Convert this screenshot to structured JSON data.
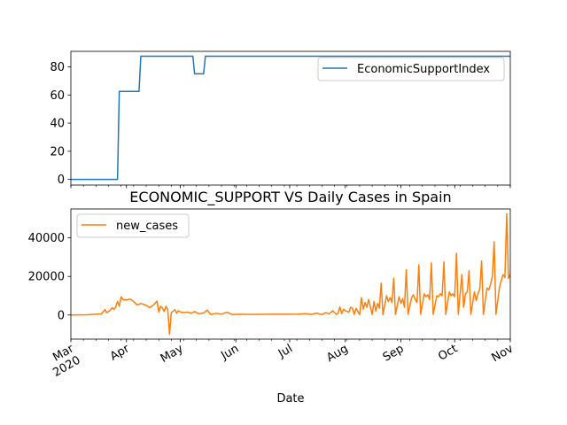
{
  "chart_data": [
    {
      "type": "line",
      "title": "",
      "xlabel": "",
      "ylabel": "",
      "color": "#1f77b4",
      "legend_position": "top-right",
      "grid": false,
      "xlim": [
        "2020-03-01",
        "2020-11-01"
      ],
      "ylim": [
        -4,
        91
      ],
      "yticks": [
        0,
        20,
        40,
        60,
        80
      ],
      "ytick_labels": [
        "0",
        "20",
        "40",
        "60",
        "80"
      ],
      "series": [
        {
          "name": "EconomicSupportIndex",
          "points": [
            [
              "2020-03-01",
              0
            ],
            [
              "2020-03-27",
              0
            ],
            [
              "2020-03-28",
              62.5
            ],
            [
              "2020-04-08",
              62.5
            ],
            [
              "2020-04-09",
              87.5
            ],
            [
              "2020-05-08",
              87.5
            ],
            [
              "2020-05-09",
              75
            ],
            [
              "2020-05-14",
              75
            ],
            [
              "2020-05-15",
              87.5
            ],
            [
              "2020-11-01",
              87.5
            ]
          ]
        }
      ]
    },
    {
      "type": "line",
      "title": "ECONOMIC_SUPPORT VS Daily Cases in Spain",
      "xlabel": "Date",
      "ylabel": "",
      "color": "#ff7f0e",
      "legend_position": "top-left",
      "grid": false,
      "xlim": [
        "2020-03-01",
        "2020-11-01"
      ],
      "ylim": [
        -12500,
        55000
      ],
      "yticks": [
        0,
        20000,
        40000
      ],
      "ytick_labels": [
        "0",
        "20000",
        "40000"
      ],
      "xtick_dates": [
        "2020-03-01",
        "2020-04-01",
        "2020-05-01",
        "2020-06-01",
        "2020-07-01",
        "2020-08-01",
        "2020-09-01",
        "2020-10-01",
        "2020-11-01"
      ],
      "xtick_labels": [
        "Mar\n2020",
        "Apr",
        "May",
        "Jun",
        "Jul",
        "Aug",
        "Sep",
        "Oct",
        "Nov"
      ],
      "series": [
        {
          "name": "new_cases",
          "points": [
            [
              "2020-03-01",
              0
            ],
            [
              "2020-03-10",
              100
            ],
            [
              "2020-03-18",
              600
            ],
            [
              "2020-03-20",
              2800
            ],
            [
              "2020-03-21",
              1200
            ],
            [
              "2020-03-23",
              2500
            ],
            [
              "2020-03-24",
              3800
            ],
            [
              "2020-03-25",
              2900
            ],
            [
              "2020-03-26",
              4200
            ],
            [
              "2020-03-27",
              7000
            ],
            [
              "2020-03-28",
              4500
            ],
            [
              "2020-03-29",
              9500
            ],
            [
              "2020-03-30",
              8000
            ],
            [
              "2020-04-01",
              7800
            ],
            [
              "2020-04-03",
              8300
            ],
            [
              "2020-04-05",
              7000
            ],
            [
              "2020-04-07",
              5200
            ],
            [
              "2020-04-09",
              6000
            ],
            [
              "2020-04-12",
              5000
            ],
            [
              "2020-04-14",
              3800
            ],
            [
              "2020-04-16",
              5200
            ],
            [
              "2020-04-18",
              7200
            ],
            [
              "2020-04-19",
              1500
            ],
            [
              "2020-04-20",
              4500
            ],
            [
              "2020-04-21",
              3800
            ],
            [
              "2020-04-22",
              1800
            ],
            [
              "2020-04-23",
              4500
            ],
            [
              "2020-04-24",
              3000
            ],
            [
              "2020-04-25",
              -10000
            ],
            [
              "2020-04-26",
              1200
            ],
            [
              "2020-04-28",
              2800
            ],
            [
              "2020-04-29",
              900
            ],
            [
              "2020-04-30",
              2200
            ],
            [
              "2020-05-01",
              1600
            ],
            [
              "2020-05-03",
              1200
            ],
            [
              "2020-05-05",
              1500
            ],
            [
              "2020-05-07",
              900
            ],
            [
              "2020-05-09",
              1800
            ],
            [
              "2020-05-11",
              700
            ],
            [
              "2020-05-14",
              1000
            ],
            [
              "2020-05-16",
              2500
            ],
            [
              "2020-05-18",
              300
            ],
            [
              "2020-05-21",
              900
            ],
            [
              "2020-05-24",
              400
            ],
            [
              "2020-05-27",
              1500
            ],
            [
              "2020-05-30",
              200
            ],
            [
              "2020-06-02",
              400
            ],
            [
              "2020-06-10",
              300
            ],
            [
              "2020-06-20",
              400
            ],
            [
              "2020-06-30",
              400
            ],
            [
              "2020-07-06",
              500
            ],
            [
              "2020-07-10",
              700
            ],
            [
              "2020-07-13",
              300
            ],
            [
              "2020-07-16",
              1000
            ],
            [
              "2020-07-19",
              200
            ],
            [
              "2020-07-21",
              1200
            ],
            [
              "2020-07-23",
              600
            ],
            [
              "2020-07-25",
              2200
            ],
            [
              "2020-07-27",
              300
            ],
            [
              "2020-07-28",
              1000
            ],
            [
              "2020-07-29",
              4200
            ],
            [
              "2020-07-30",
              700
            ],
            [
              "2020-07-31",
              3000
            ],
            [
              "2020-08-01",
              2200
            ],
            [
              "2020-08-03",
              1500
            ],
            [
              "2020-08-04",
              4000
            ],
            [
              "2020-08-05",
              3500
            ],
            [
              "2020-08-06",
              300
            ],
            [
              "2020-08-07",
              3500
            ],
            [
              "2020-08-09",
              200
            ],
            [
              "2020-08-10",
              9000
            ],
            [
              "2020-08-11",
              3000
            ],
            [
              "2020-08-12",
              6500
            ],
            [
              "2020-08-13",
              4000
            ],
            [
              "2020-08-14",
              8000
            ],
            [
              "2020-08-16",
              300
            ],
            [
              "2020-08-17",
              7000
            ],
            [
              "2020-08-18",
              2000
            ],
            [
              "2020-08-19",
              6000
            ],
            [
              "2020-08-20",
              3500
            ],
            [
              "2020-08-21",
              16500
            ],
            [
              "2020-08-22",
              200
            ],
            [
              "2020-08-24",
              10000
            ],
            [
              "2020-08-25",
              7000
            ],
            [
              "2020-08-26",
              9000
            ],
            [
              "2020-08-27",
              6500
            ],
            [
              "2020-08-28",
              19000
            ],
            [
              "2020-08-29",
              300
            ],
            [
              "2020-08-31",
              9500
            ],
            [
              "2020-09-01",
              6000
            ],
            [
              "2020-09-02",
              8500
            ],
            [
              "2020-09-03",
              4000
            ],
            [
              "2020-09-04",
              23500
            ],
            [
              "2020-09-05",
              300
            ],
            [
              "2020-09-07",
              9000
            ],
            [
              "2020-09-08",
              10500
            ],
            [
              "2020-09-09",
              8000
            ],
            [
              "2020-09-10",
              6500
            ],
            [
              "2020-09-11",
              26000
            ],
            [
              "2020-09-12",
              300
            ],
            [
              "2020-09-14",
              11000
            ],
            [
              "2020-09-15",
              9500
            ],
            [
              "2020-09-16",
              10500
            ],
            [
              "2020-09-17",
              8000
            ],
            [
              "2020-09-18",
              27000
            ],
            [
              "2020-09-19",
              300
            ],
            [
              "2020-09-21",
              10000
            ],
            [
              "2020-09-22",
              9500
            ],
            [
              "2020-09-23",
              11000
            ],
            [
              "2020-09-24",
              10000
            ],
            [
              "2020-09-25",
              27500
            ],
            [
              "2020-09-26",
              300
            ],
            [
              "2020-09-28",
              12000
            ],
            [
              "2020-09-29",
              10000
            ],
            [
              "2020-09-30",
              11000
            ],
            [
              "2020-10-01",
              9500
            ],
            [
              "2020-10-02",
              32000
            ],
            [
              "2020-10-03",
              300
            ],
            [
              "2020-10-05",
              21000
            ],
            [
              "2020-10-06",
              4000
            ],
            [
              "2020-10-07",
              11000
            ],
            [
              "2020-10-08",
              12000
            ],
            [
              "2020-10-09",
              23000
            ],
            [
              "2020-10-10",
              300
            ],
            [
              "2020-10-12",
              12000
            ],
            [
              "2020-10-13",
              7500
            ],
            [
              "2020-10-14",
              11000
            ],
            [
              "2020-10-15",
              13500
            ],
            [
              "2020-10-16",
              28000
            ],
            [
              "2020-10-17",
              300
            ],
            [
              "2020-10-19",
              14000
            ],
            [
              "2020-10-20",
              13000
            ],
            [
              "2020-10-21",
              16000
            ],
            [
              "2020-10-22",
              20000
            ],
            [
              "2020-10-23",
              38000
            ],
            [
              "2020-10-24",
              300
            ],
            [
              "2020-10-26",
              14500
            ],
            [
              "2020-10-27",
              18000
            ],
            [
              "2020-10-28",
              21000
            ],
            [
              "2020-10-29",
              19500
            ],
            [
              "2020-10-30",
              52500
            ],
            [
              "2020-10-31",
              19000
            ],
            [
              "2020-11-01",
              21000
            ],
            [
              "2020-11-02",
              25000
            ],
            [
              "2020-11-03",
              0
            ]
          ]
        }
      ]
    }
  ]
}
